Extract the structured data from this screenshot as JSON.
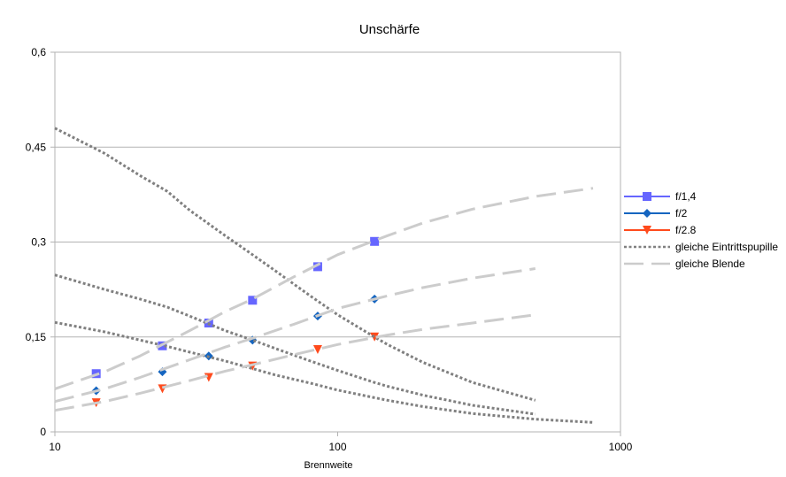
{
  "chart_data": {
    "type": "scatter",
    "title": "Unschärfe",
    "xlabel": "Brennweite",
    "ylabel": "",
    "x_scale": "log",
    "xlim": [
      10,
      1000
    ],
    "ylim": [
      0,
      0.6
    ],
    "x_ticks": [
      10,
      100,
      1000
    ],
    "x_tick_labels": [
      "10",
      "100",
      "1000"
    ],
    "y_ticks": [
      0,
      0.15,
      0.3,
      0.45,
      0.6
    ],
    "y_tick_labels": [
      "0",
      "0,15",
      "0,3",
      "0,45",
      "0,6"
    ],
    "grid": "horizontal",
    "legend_position": "right",
    "series": [
      {
        "name": "f/1,4",
        "style": "markers",
        "marker": "square",
        "color": "#6666ff",
        "x": [
          14,
          24,
          35,
          50,
          85,
          135
        ],
        "y": [
          0.092,
          0.136,
          0.172,
          0.208,
          0.261,
          0.301
        ]
      },
      {
        "name": "f/2",
        "style": "markers",
        "marker": "diamond",
        "color": "#1565c0",
        "x": [
          14,
          24,
          35,
          50,
          85,
          135
        ],
        "y": [
          0.065,
          0.095,
          0.12,
          0.145,
          0.183,
          0.21
        ]
      },
      {
        "name": "f/2.8",
        "style": "markers",
        "marker": "triangle-down",
        "color": "#ff4a1c",
        "x": [
          14,
          24,
          35,
          50,
          85,
          135
        ],
        "y": [
          0.046,
          0.068,
          0.086,
          0.104,
          0.13,
          0.15
        ]
      },
      {
        "name": "gleiche Eintrittspupille",
        "style": "dotted",
        "color": "#808080",
        "legend": true,
        "x": [
          10,
          15,
          20,
          25,
          30,
          40,
          50,
          60,
          80,
          100,
          135,
          150,
          200,
          300,
          500
        ],
        "y": [
          0.48,
          0.44,
          0.405,
          0.38,
          0.35,
          0.31,
          0.28,
          0.255,
          0.215,
          0.185,
          0.15,
          0.138,
          0.11,
          0.078,
          0.05
        ]
      },
      {
        "name": "",
        "style": "dotted",
        "color": "#808080",
        "legend": false,
        "x": [
          10,
          15,
          20,
          25,
          30,
          40,
          50,
          60,
          80,
          100,
          135,
          150,
          200,
          300,
          500
        ],
        "y": [
          0.248,
          0.225,
          0.21,
          0.197,
          0.183,
          0.16,
          0.145,
          0.132,
          0.112,
          0.097,
          0.078,
          0.072,
          0.058,
          0.042,
          0.028
        ]
      },
      {
        "name": "",
        "style": "dotted",
        "color": "#808080",
        "legend": false,
        "x": [
          10,
          15,
          20,
          25,
          30,
          40,
          50,
          60,
          80,
          100,
          135,
          150,
          200,
          300,
          500,
          800
        ],
        "y": [
          0.173,
          0.158,
          0.145,
          0.135,
          0.126,
          0.112,
          0.1,
          0.09,
          0.077,
          0.066,
          0.054,
          0.05,
          0.04,
          0.029,
          0.02,
          0.015
        ]
      },
      {
        "name": "gleiche Blende",
        "style": "dashed",
        "color": "#cccccc",
        "legend": true,
        "x": [
          10,
          15,
          20,
          30,
          40,
          50,
          70,
          100,
          150,
          200,
          300,
          500,
          800
        ],
        "y": [
          0.068,
          0.095,
          0.12,
          0.16,
          0.19,
          0.21,
          0.245,
          0.28,
          0.31,
          0.33,
          0.352,
          0.372,
          0.385
        ]
      },
      {
        "name": "",
        "style": "dashed",
        "color": "#cccccc",
        "legend": false,
        "x": [
          10,
          15,
          20,
          30,
          40,
          50,
          70,
          100,
          150,
          200,
          300,
          500
        ],
        "y": [
          0.048,
          0.068,
          0.086,
          0.114,
          0.134,
          0.148,
          0.17,
          0.195,
          0.215,
          0.228,
          0.243,
          0.258
        ]
      },
      {
        "name": "",
        "style": "dashed",
        "color": "#cccccc",
        "legend": false,
        "x": [
          10,
          15,
          20,
          30,
          40,
          50,
          70,
          100,
          150,
          200,
          300,
          500
        ],
        "y": [
          0.034,
          0.048,
          0.061,
          0.081,
          0.096,
          0.106,
          0.122,
          0.138,
          0.153,
          0.162,
          0.172,
          0.185
        ]
      }
    ]
  }
}
